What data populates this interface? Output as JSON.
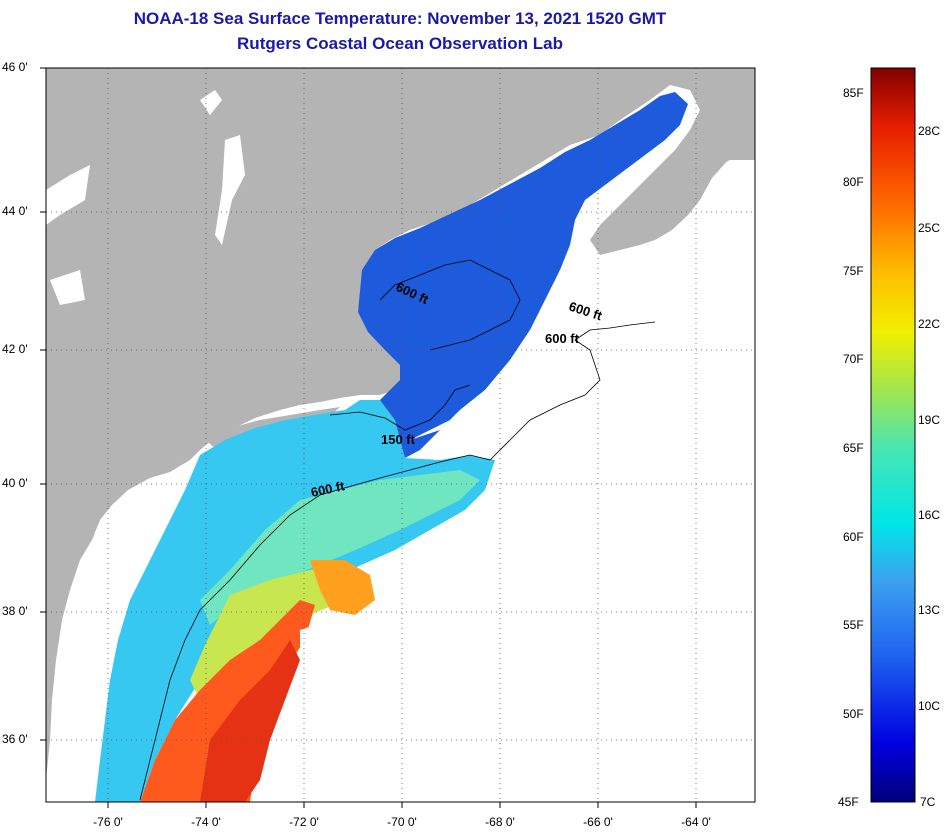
{
  "header": {
    "title": "NOAA-18 Sea Surface Temperature:  November 13, 2021 1520 GMT",
    "subtitle": "Rutgers Coastal Ocean Observation Lab"
  },
  "map": {
    "lat_labels": [
      "46 0'",
      "44 0'",
      "42 0'",
      "40 0'",
      "38 0'",
      "36 0'"
    ],
    "lon_labels": [
      "-76 0'",
      "-74 0'",
      "-72 0'",
      "-70 0'",
      "-68 0'",
      "-66 0'",
      "-64 0'"
    ],
    "lat_range": [
      35,
      46
    ],
    "lon_range": [
      -77,
      -62.5
    ],
    "contours": [
      {
        "label": "600 ft",
        "text": "600 ft"
      },
      {
        "label": "600 ft",
        "text": "600 ft"
      },
      {
        "label": "600 ft",
        "text": "600 ft"
      },
      {
        "label": "150 ft",
        "text": "150 ft"
      },
      {
        "label": "600 ft",
        "text": "600 ft"
      }
    ],
    "colors": {
      "land": "#b4b4b4",
      "cloud": "#ffffff",
      "cold_water": "#1e5adc",
      "mid_water": "#36c8f0",
      "shelf_water": "#50e6cc",
      "warm_water": "#c8e650",
      "gulfstream": "#ff5a1e"
    }
  },
  "colorbar": {
    "fahrenheit": [
      "85F",
      "80F",
      "75F",
      "70F",
      "65F",
      "60F",
      "55F",
      "50F",
      "45F"
    ],
    "celsius": [
      "28C",
      "25C",
      "22C",
      "19C",
      "16C",
      "13C",
      "10C",
      "7C"
    ],
    "range_f": [
      45,
      86
    ]
  }
}
